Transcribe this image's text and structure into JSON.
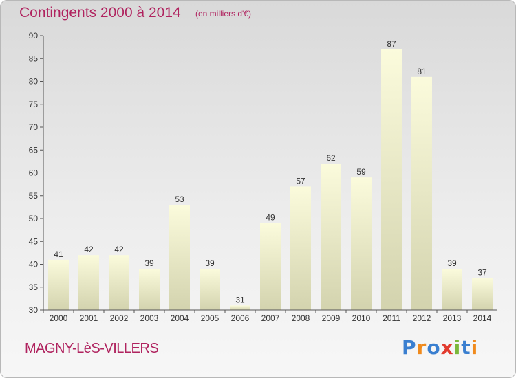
{
  "header": {
    "title": "Contingents 2000 à 2014",
    "subtitle": "(en milliers d'€)"
  },
  "footer": {
    "town": "MAGNY-LèS-VILLERS",
    "brand_letters": [
      "P",
      "r",
      "o",
      "x",
      "i",
      "t",
      "i"
    ],
    "brand_colors": [
      "#3a7fd0",
      "#f08a1c",
      "#3a7fd0",
      "#e23b2e",
      "#7ab83a",
      "#3a7fd0",
      "#f08a1c"
    ]
  },
  "colors": {
    "accent": "#b0235f",
    "bar_light": "#fbfbdc",
    "bar_dark": "#d3d3ae",
    "axis": "#555555"
  },
  "chart_data": {
    "type": "bar",
    "categories": [
      "2000",
      "2001",
      "2002",
      "2003",
      "2004",
      "2005",
      "2006",
      "2007",
      "2008",
      "2009",
      "2010",
      "2011",
      "2012",
      "2013",
      "2014"
    ],
    "values": [
      41,
      42,
      42,
      39,
      53,
      39,
      31,
      49,
      57,
      62,
      59,
      87,
      81,
      39,
      37
    ],
    "title": "Contingents 2000 à 2014",
    "subtitle": "(en milliers d'€)",
    "ylim": [
      30,
      90
    ],
    "yticks": [
      30,
      35,
      40,
      45,
      50,
      55,
      60,
      65,
      70,
      75,
      80,
      85,
      90
    ],
    "grid": false,
    "legend": "none"
  }
}
